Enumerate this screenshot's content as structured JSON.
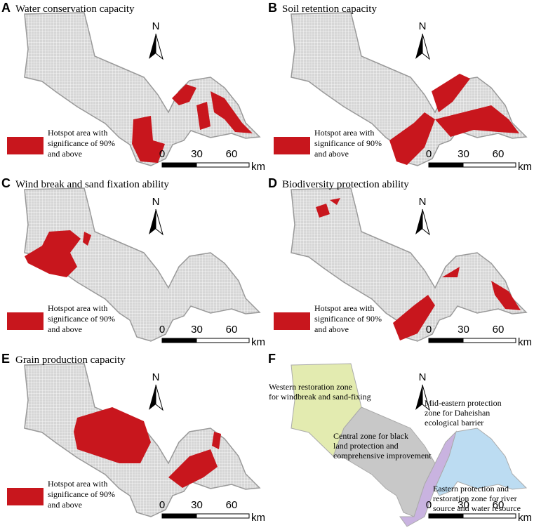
{
  "panels": [
    {
      "letter": "A",
      "title": "Water conservation capacity",
      "legend": [
        "Hotspot area with",
        "significance of 90%",
        "and above"
      ],
      "north": "N",
      "scale": {
        "ticks": [
          0,
          30,
          60
        ],
        "unit": "km"
      }
    },
    {
      "letter": "B",
      "title": "Soil retention capacity",
      "legend": [
        "Hotspot area with",
        "significance of 90%",
        "and above"
      ],
      "north": "N",
      "scale": {
        "ticks": [
          0,
          30,
          60
        ],
        "unit": "km"
      }
    },
    {
      "letter": "C",
      "title": "Wind break and sand fixation ability",
      "legend": [
        "Hotspot area with",
        "significance of 90%",
        "and above"
      ],
      "north": "N",
      "scale": {
        "ticks": [
          0,
          30,
          60
        ],
        "unit": "km"
      }
    },
    {
      "letter": "D",
      "title": "Biodiversity protection ability",
      "legend": [
        "Hotspot area with",
        "significance of 90%",
        "and above"
      ],
      "north": "N",
      "scale": {
        "ticks": [
          0,
          30,
          60
        ],
        "unit": "km"
      }
    },
    {
      "letter": "E",
      "title": "Grain production capacity",
      "legend": [
        "Hotspot area with",
        "significance of 90%",
        "and above"
      ],
      "north": "N",
      "scale": {
        "ticks": [
          0,
          30,
          60
        ],
        "unit": "km"
      }
    },
    {
      "letter": "F",
      "north": "N",
      "scale": {
        "ticks": [
          0,
          30,
          60
        ],
        "unit": "km"
      },
      "zones": [
        {
          "label": [
            "Western restoration zone",
            "for windbreak and sand-fixing"
          ]
        },
        {
          "label": [
            "Central zone for black",
            "land protection and",
            "comprehensive improvement"
          ]
        },
        {
          "label": [
            "Mid-eastern protection",
            "zone for Daheishan",
            "ecological barrier"
          ]
        },
        {
          "label": [
            "Eastern protection and",
            "restoration zone for river",
            "source and water resource"
          ]
        }
      ]
    }
  ]
}
